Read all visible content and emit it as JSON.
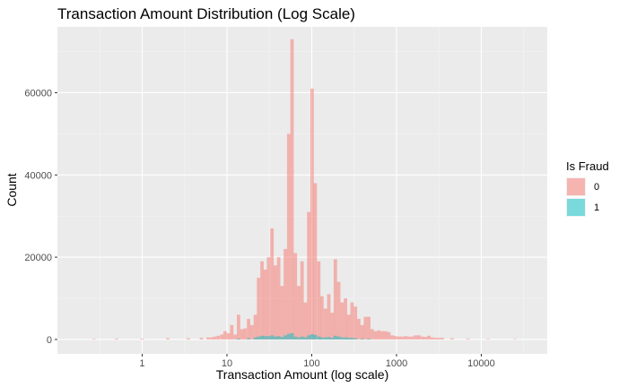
{
  "chart_data": {
    "type": "histogram",
    "title": "Transaction Amount Distribution (Log Scale)",
    "xlabel": "Transaction Amount (log scale)",
    "ylabel": "Count",
    "x_scale": "log10",
    "xlim": [
      0.1,
      60000
    ],
    "ylim": [
      -3500,
      76000
    ],
    "x_ticks": [
      1,
      10,
      100,
      1000,
      10000
    ],
    "x_tick_labels": [
      "1",
      "10",
      "100",
      "1000",
      "10000"
    ],
    "y_ticks": [
      0,
      20000,
      40000,
      60000
    ],
    "y_tick_labels": [
      "0",
      "20000",
      "40000",
      "60000"
    ],
    "legend": {
      "title": "Is Fraud",
      "position": "right",
      "entries": [
        {
          "label": "0",
          "color": "#F8766D"
        },
        {
          "label": "1",
          "color": "#00BFC4"
        }
      ]
    },
    "bin_width_log10": 0.04,
    "series": [
      {
        "name": "0",
        "color": "#F8766D",
        "bins": [
          {
            "x": 0.27,
            "count": 150
          },
          {
            "x": 0.5,
            "count": 200
          },
          {
            "x": 1.0,
            "count": 200
          },
          {
            "x": 2.0,
            "count": 300
          },
          {
            "x": 3.5,
            "count": 300
          },
          {
            "x": 5.0,
            "count": 400
          },
          {
            "x": 6.0,
            "count": 500
          },
          {
            "x": 6.6,
            "count": 500
          },
          {
            "x": 7.2,
            "count": 700
          },
          {
            "x": 7.9,
            "count": 900
          },
          {
            "x": 8.7,
            "count": 1200
          },
          {
            "x": 9.5,
            "count": 2000
          },
          {
            "x": 10.4,
            "count": 1500
          },
          {
            "x": 11.4,
            "count": 3500
          },
          {
            "x": 12.5,
            "count": 1200
          },
          {
            "x": 13.7,
            "count": 6000
          },
          {
            "x": 15.0,
            "count": 2500
          },
          {
            "x": 16.4,
            "count": 2700
          },
          {
            "x": 18.0,
            "count": 5000
          },
          {
            "x": 19.7,
            "count": 3500
          },
          {
            "x": 21.6,
            "count": 6000
          },
          {
            "x": 23.6,
            "count": 15000
          },
          {
            "x": 25.9,
            "count": 19000
          },
          {
            "x": 28.3,
            "count": 17000
          },
          {
            "x": 31.0,
            "count": 20000
          },
          {
            "x": 34.0,
            "count": 27000
          },
          {
            "x": 37.2,
            "count": 18000
          },
          {
            "x": 40.7,
            "count": 20000
          },
          {
            "x": 44.6,
            "count": 13000
          },
          {
            "x": 48.8,
            "count": 22000
          },
          {
            "x": 53.5,
            "count": 50000
          },
          {
            "x": 58.6,
            "count": 73000
          },
          {
            "x": 64.1,
            "count": 21000
          },
          {
            "x": 70.2,
            "count": 13000
          },
          {
            "x": 76.9,
            "count": 19000
          },
          {
            "x": 84.2,
            "count": 9000
          },
          {
            "x": 92.2,
            "count": 31000
          },
          {
            "x": 101,
            "count": 61000
          },
          {
            "x": 110,
            "count": 38000
          },
          {
            "x": 121,
            "count": 19000
          },
          {
            "x": 132,
            "count": 10500
          },
          {
            "x": 145,
            "count": 7500
          },
          {
            "x": 159,
            "count": 11000
          },
          {
            "x": 174,
            "count": 6500
          },
          {
            "x": 190,
            "count": 19500
          },
          {
            "x": 208,
            "count": 14000
          },
          {
            "x": 228,
            "count": 9000
          },
          {
            "x": 250,
            "count": 10000
          },
          {
            "x": 273,
            "count": 6000
          },
          {
            "x": 299,
            "count": 9000
          },
          {
            "x": 328,
            "count": 8000
          },
          {
            "x": 359,
            "count": 5000
          },
          {
            "x": 393,
            "count": 3500
          },
          {
            "x": 430,
            "count": 5500
          },
          {
            "x": 471,
            "count": 5500
          },
          {
            "x": 516,
            "count": 2500
          },
          {
            "x": 565,
            "count": 2000
          },
          {
            "x": 619,
            "count": 2200
          },
          {
            "x": 678,
            "count": 2000
          },
          {
            "x": 742,
            "count": 2000
          },
          {
            "x": 812,
            "count": 1800
          },
          {
            "x": 890,
            "count": 1000
          },
          {
            "x": 974,
            "count": 800
          },
          {
            "x": 1067,
            "count": 700
          },
          {
            "x": 1168,
            "count": 700
          },
          {
            "x": 1279,
            "count": 800
          },
          {
            "x": 1400,
            "count": 700
          },
          {
            "x": 1533,
            "count": 700
          },
          {
            "x": 1679,
            "count": 1000
          },
          {
            "x": 1838,
            "count": 1000
          },
          {
            "x": 2013,
            "count": 700
          },
          {
            "x": 2204,
            "count": 600
          },
          {
            "x": 2413,
            "count": 900
          },
          {
            "x": 2642,
            "count": 500
          },
          {
            "x": 2894,
            "count": 400
          },
          {
            "x": 3169,
            "count": 400
          },
          {
            "x": 3470,
            "count": 400
          },
          {
            "x": 4500,
            "count": 300
          },
          {
            "x": 7000,
            "count": 200
          },
          {
            "x": 12000,
            "count": 150
          },
          {
            "x": 25000,
            "count": 100
          }
        ]
      },
      {
        "name": "1",
        "color": "#00BFC4",
        "bins": [
          {
            "x": 13.7,
            "count": 200
          },
          {
            "x": 18.0,
            "count": 300
          },
          {
            "x": 21.6,
            "count": 500
          },
          {
            "x": 23.6,
            "count": 700
          },
          {
            "x": 25.9,
            "count": 900
          },
          {
            "x": 28.3,
            "count": 800
          },
          {
            "x": 31.0,
            "count": 800
          },
          {
            "x": 34.0,
            "count": 1000
          },
          {
            "x": 37.2,
            "count": 700
          },
          {
            "x": 40.7,
            "count": 800
          },
          {
            "x": 44.6,
            "count": 600
          },
          {
            "x": 48.8,
            "count": 1000
          },
          {
            "x": 53.5,
            "count": 1400
          },
          {
            "x": 58.6,
            "count": 1500
          },
          {
            "x": 64.1,
            "count": 700
          },
          {
            "x": 70.2,
            "count": 500
          },
          {
            "x": 76.9,
            "count": 700
          },
          {
            "x": 84.2,
            "count": 500
          },
          {
            "x": 92.2,
            "count": 1000
          },
          {
            "x": 101,
            "count": 1300
          },
          {
            "x": 110,
            "count": 1100
          },
          {
            "x": 121,
            "count": 700
          },
          {
            "x": 132,
            "count": 500
          },
          {
            "x": 145,
            "count": 500
          },
          {
            "x": 159,
            "count": 600
          },
          {
            "x": 174,
            "count": 400
          },
          {
            "x": 190,
            "count": 900
          },
          {
            "x": 208,
            "count": 700
          },
          {
            "x": 228,
            "count": 500
          },
          {
            "x": 250,
            "count": 500
          },
          {
            "x": 273,
            "count": 400
          },
          {
            "x": 299,
            "count": 400
          },
          {
            "x": 328,
            "count": 300
          },
          {
            "x": 393,
            "count": 200
          },
          {
            "x": 471,
            "count": 200
          }
        ]
      }
    ]
  }
}
